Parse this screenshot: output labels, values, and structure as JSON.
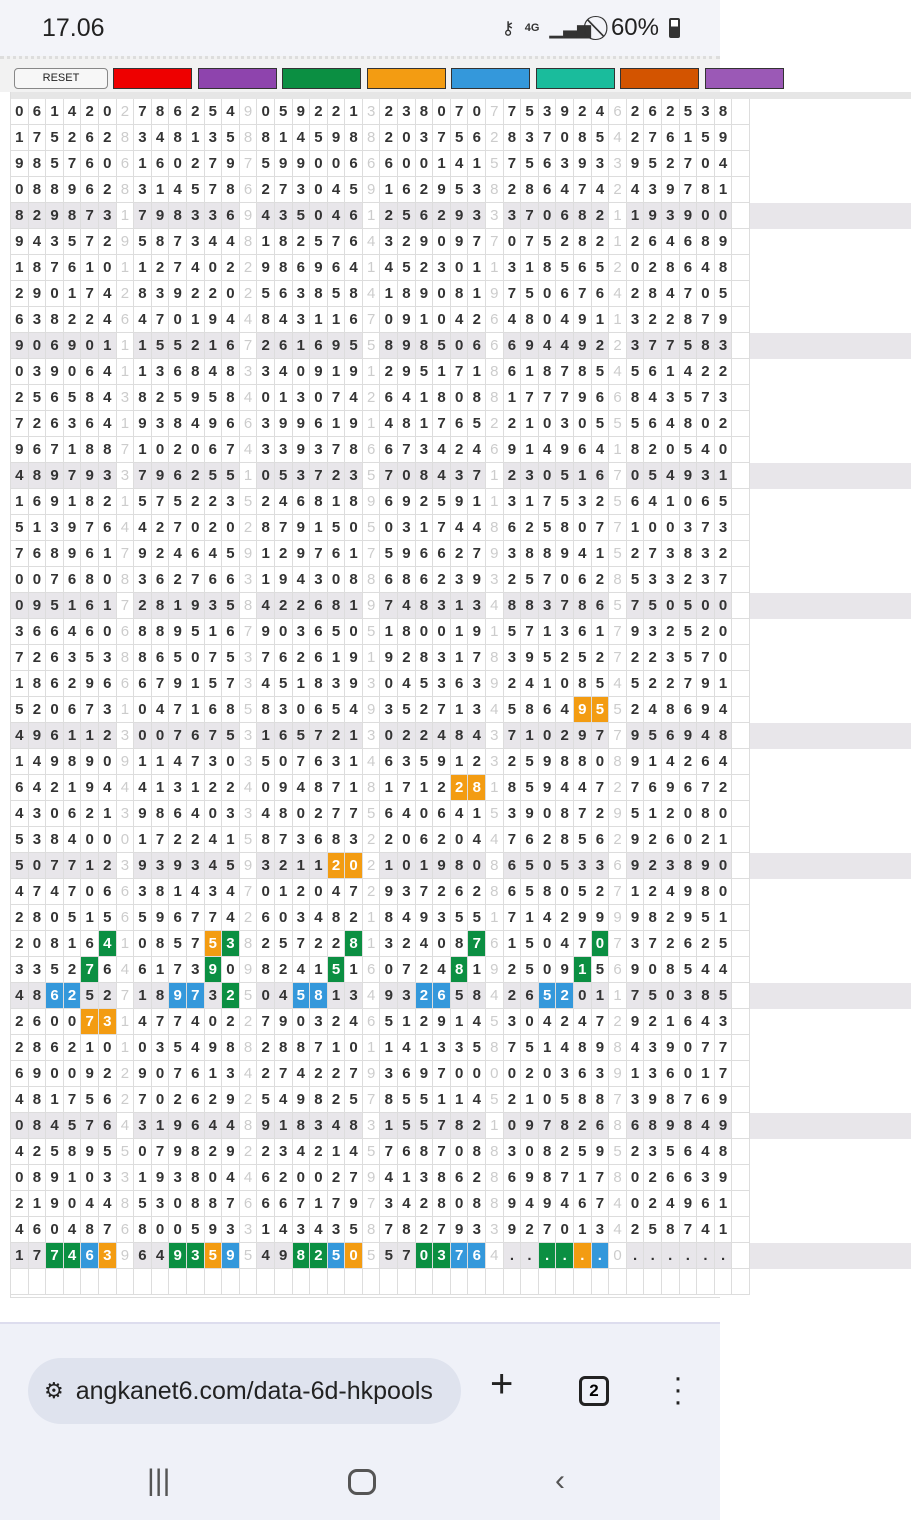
{
  "status": {
    "time": "17.06",
    "network": "4G",
    "battery": "60%",
    "icons": [
      "key-icon",
      "data-arrows-icon",
      "signal-icon",
      "do-not-disturb-icon",
      "battery-icon"
    ]
  },
  "toolbar": {
    "reset_label": "RESET",
    "swatches": [
      "#ee0000",
      "#8e44ad",
      "#0b8f42",
      "#f39c12",
      "#3498db",
      "#1abc9c",
      "#d35400",
      "#9b59b6"
    ]
  },
  "colors": {
    "orange": "#f39c12",
    "green": "#0b8f42",
    "blue": "#3498db"
  },
  "grid": {
    "rows": [
      {
        "b": [
          "061420",
          "786254",
          "059221",
          "238070",
          "753924",
          "262538"
        ],
        "s": [
          "2",
          "9",
          "3",
          "7",
          "6",
          ""
        ]
      },
      {
        "b": [
          "175262",
          "348135",
          "814598",
          "203756",
          "837085",
          "276159"
        ],
        "s": [
          "8",
          "8",
          "8",
          "2",
          "4",
          ""
        ]
      },
      {
        "b": [
          "985760",
          "160279",
          "599006",
          "600141",
          "756393",
          "952704"
        ],
        "s": [
          "6",
          "7",
          "6",
          "5",
          "3",
          ""
        ]
      },
      {
        "b": [
          "088962",
          "314578",
          "273045",
          "162953",
          "286474",
          "439781"
        ],
        "s": [
          "8",
          "6",
          "9",
          "8",
          "2",
          ""
        ]
      },
      {
        "b": [
          "829873",
          "798336",
          "435046",
          "256293",
          "370682",
          "193900"
        ],
        "s": [
          "1",
          "9",
          "1",
          "3",
          "1",
          ""
        ]
      },
      {
        "b": [
          "943572",
          "587344",
          "182576",
          "329097",
          "075282",
          "264689"
        ],
        "s": [
          "9",
          "8",
          "4",
          "7",
          "1",
          ""
        ]
      },
      {
        "b": [
          "187610",
          "127402",
          "986964",
          "452301",
          "318565",
          "028648"
        ],
        "s": [
          "1",
          "2",
          "1",
          "1",
          "2",
          ""
        ]
      },
      {
        "b": [
          "290174",
          "839220",
          "563858",
          "189081",
          "750676",
          "284705"
        ],
        "s": [
          "2",
          "2",
          "4",
          "9",
          "4",
          ""
        ]
      },
      {
        "b": [
          "638224",
          "470194",
          "843116",
          "091042",
          "480491",
          "322879"
        ],
        "s": [
          "6",
          "4",
          "7",
          "6",
          "1",
          ""
        ]
      },
      {
        "b": [
          "906901",
          "155216",
          "261695",
          "898506",
          "694492",
          "377583"
        ],
        "s": [
          "1",
          "7",
          "5",
          "6",
          "2",
          ""
        ]
      },
      {
        "b": [
          "039064",
          "136848",
          "340919",
          "295171",
          "618785",
          "561422"
        ],
        "s": [
          "1",
          "3",
          "1",
          "8",
          "4",
          ""
        ]
      },
      {
        "b": [
          "256584",
          "825958",
          "013074",
          "641808",
          "177796",
          "843573"
        ],
        "s": [
          "3",
          "4",
          "2",
          "8",
          "6",
          ""
        ]
      },
      {
        "b": [
          "726364",
          "938496",
          "399619",
          "481765",
          "210305",
          "564802"
        ],
        "s": [
          "1",
          "6",
          "1",
          "2",
          "5",
          ""
        ]
      },
      {
        "b": [
          "967188",
          "102067",
          "339378",
          "673424",
          "914964",
          "820540"
        ],
        "s": [
          "7",
          "4",
          "6",
          "6",
          "1",
          ""
        ]
      },
      {
        "b": [
          "489793",
          "796255",
          "053723",
          "708437",
          "230516",
          "054931"
        ],
        "s": [
          "3",
          "1",
          "5",
          "1",
          "7",
          ""
        ]
      },
      {
        "b": [
          "169182",
          "575223",
          "246818",
          "692591",
          "317532",
          "641065"
        ],
        "s": [
          "1",
          "5",
          "9",
          "1",
          "5",
          ""
        ]
      },
      {
        "b": [
          "513976",
          "427020",
          "879150",
          "031744",
          "625807",
          "100373"
        ],
        "s": [
          "4",
          "2",
          "5",
          "8",
          "7",
          ""
        ]
      },
      {
        "b": [
          "768961",
          "924645",
          "129761",
          "596627",
          "388941",
          "273832"
        ],
        "s": [
          "7",
          "9",
          "7",
          "9",
          "5",
          ""
        ]
      },
      {
        "b": [
          "007680",
          "362766",
          "194308",
          "686239",
          "257062",
          "533237"
        ],
        "s": [
          "8",
          "3",
          "8",
          "3",
          "8",
          ""
        ]
      },
      {
        "b": [
          "095161",
          "281935",
          "422681",
          "748313",
          "883786",
          "750500"
        ],
        "s": [
          "7",
          "8",
          "9",
          "4",
          "5",
          ""
        ]
      },
      {
        "b": [
          "366460",
          "889516",
          "903650",
          "180019",
          "571361",
          "932520"
        ],
        "s": [
          "6",
          "7",
          "5",
          "1",
          "7",
          ""
        ]
      },
      {
        "b": [
          "726353",
          "865075",
          "762619",
          "928317",
          "395252",
          "223570"
        ],
        "s": [
          "8",
          "3",
          "1",
          "8",
          "7",
          ""
        ]
      },
      {
        "b": [
          "186296",
          "679157",
          "451839",
          "045363",
          "241085",
          "522791"
        ],
        "s": [
          "6",
          "3",
          "3",
          "9",
          "4",
          ""
        ]
      },
      {
        "b": [
          "520673",
          "047168",
          "830654",
          "352713",
          "586495",
          "248694"
        ],
        "s": [
          "1",
          "5",
          "9",
          "4",
          "5",
          ""
        ],
        "m": [
          [
            4,
            4,
            "orange"
          ],
          [
            4,
            5,
            "orange"
          ]
        ]
      },
      {
        "b": [
          "496112",
          "007675",
          "165721",
          "022484",
          "710297",
          "956948"
        ],
        "s": [
          "3",
          "3",
          "3",
          "3",
          "7",
          ""
        ]
      },
      {
        "b": [
          "149890",
          "114730",
          "507631",
          "635912",
          "259880",
          "914264"
        ],
        "s": [
          "9",
          "3",
          "4",
          "3",
          "8",
          ""
        ]
      },
      {
        "b": [
          "642194",
          "413122",
          "094871",
          "171228",
          "859447",
          "769672"
        ],
        "s": [
          "4",
          "4",
          "8",
          "1",
          "2",
          ""
        ],
        "m": [
          [
            3,
            4,
            "orange"
          ],
          [
            3,
            5,
            "orange"
          ]
        ]
      },
      {
        "b": [
          "430621",
          "986403",
          "480277",
          "640641",
          "390872",
          "512080"
        ],
        "s": [
          "3",
          "3",
          "5",
          "5",
          "9",
          ""
        ]
      },
      {
        "b": [
          "538400",
          "172241",
          "873683",
          "206204",
          "762856",
          "926021"
        ],
        "s": [
          "0",
          "5",
          "2",
          "4",
          "2",
          ""
        ]
      },
      {
        "b": [
          "507712",
          "939345",
          "321120",
          "101980",
          "650533",
          "923890"
        ],
        "s": [
          "3",
          "9",
          "2",
          "8",
          "6",
          ""
        ],
        "m": [
          [
            2,
            4,
            "orange"
          ],
          [
            2,
            5,
            "orange"
          ]
        ]
      },
      {
        "b": [
          "474706",
          "381434",
          "012047",
          "937262",
          "658052",
          "124980"
        ],
        "s": [
          "6",
          "7",
          "2",
          "8",
          "7",
          ""
        ]
      },
      {
        "b": [
          "280515",
          "596774",
          "603482",
          "849355",
          "714299",
          "982951"
        ],
        "s": [
          "6",
          "2",
          "1",
          "1",
          "9",
          ""
        ]
      },
      {
        "b": [
          "208164",
          "085753",
          "257228",
          "324087",
          "150470",
          "372625"
        ],
        "s": [
          "1",
          "8",
          "1",
          "6",
          "7",
          ""
        ],
        "m": [
          [
            0,
            5,
            "green"
          ],
          [
            1,
            4,
            "orange"
          ],
          [
            1,
            5,
            "green"
          ],
          [
            2,
            5,
            "green"
          ],
          [
            3,
            5,
            "green"
          ],
          [
            4,
            5,
            "green"
          ]
        ]
      },
      {
        "b": [
          "335276",
          "617390",
          "824151",
          "072481",
          "250915",
          "908544"
        ],
        "s": [
          "4",
          "9",
          "6",
          "9",
          "6",
          ""
        ],
        "m": [
          [
            0,
            4,
            "green"
          ],
          [
            1,
            4,
            "green"
          ],
          [
            2,
            4,
            "green"
          ],
          [
            3,
            4,
            "green"
          ],
          [
            4,
            4,
            "green"
          ]
        ]
      },
      {
        "b": [
          "486252",
          "189732",
          "045813",
          "932658",
          "265201",
          "750385"
        ],
        "s": [
          "7",
          "5",
          "4",
          "4",
          "1",
          ""
        ],
        "m": [
          [
            0,
            2,
            "blue"
          ],
          [
            0,
            3,
            "blue"
          ],
          [
            1,
            2,
            "blue"
          ],
          [
            1,
            3,
            "blue"
          ],
          [
            1,
            5,
            "green"
          ],
          [
            2,
            2,
            "blue"
          ],
          [
            2,
            3,
            "blue"
          ],
          [
            3,
            2,
            "blue"
          ],
          [
            3,
            3,
            "blue"
          ],
          [
            4,
            2,
            "blue"
          ],
          [
            4,
            3,
            "blue"
          ]
        ]
      },
      {
        "b": [
          "260073",
          "477402",
          "790324",
          "512914",
          "304247",
          "921643"
        ],
        "s": [
          "1",
          "2",
          "6",
          "5",
          "2",
          ""
        ],
        "m": [
          [
            0,
            4,
            "orange"
          ],
          [
            0,
            5,
            "orange"
          ]
        ]
      },
      {
        "b": [
          "286210",
          "035498",
          "288710",
          "141335",
          "751489",
          "439077"
        ],
        "s": [
          "1",
          "8",
          "1",
          "8",
          "8",
          ""
        ]
      },
      {
        "b": [
          "690092",
          "907613",
          "274227",
          "369700",
          "020363",
          "136017"
        ],
        "s": [
          "2",
          "4",
          "9",
          "0",
          "9",
          ""
        ]
      },
      {
        "b": [
          "481756",
          "702629",
          "549825",
          "855114",
          "210588",
          "398769"
        ],
        "s": [
          "2",
          "2",
          "7",
          "5",
          "7",
          ""
        ]
      },
      {
        "b": [
          "084576",
          "319644",
          "918348",
          "155782",
          "097826",
          "689849"
        ],
        "s": [
          "4",
          "8",
          "3",
          "1",
          "8",
          ""
        ]
      },
      {
        "b": [
          "425895",
          "079829",
          "234214",
          "768708",
          "308259",
          "235648"
        ],
        "s": [
          "5",
          "2",
          "5",
          "8",
          "5",
          ""
        ]
      },
      {
        "b": [
          "089103",
          "193804",
          "620027",
          "413862",
          "698717",
          "026639"
        ],
        "s": [
          "3",
          "4",
          "9",
          "8",
          "8",
          ""
        ]
      },
      {
        "b": [
          "219044",
          "530887",
          "667179",
          "342808",
          "949467",
          "024961"
        ],
        "s": [
          "8",
          "6",
          "7",
          "8",
          "4",
          ""
        ]
      },
      {
        "b": [
          "460487",
          "800593",
          "143435",
          "782793",
          "927013",
          "258741"
        ],
        "s": [
          "6",
          "3",
          "8",
          "3",
          "4",
          ""
        ]
      },
      {
        "b": [
          "177463",
          "649359",
          "498250",
          "570376",
          "......",
          "......"
        ],
        "s": [
          "9",
          "5",
          "5",
          "4",
          "0",
          ""
        ],
        "m": [
          [
            0,
            2,
            "green"
          ],
          [
            0,
            3,
            "green"
          ],
          [
            0,
            4,
            "blue"
          ],
          [
            0,
            5,
            "orange"
          ],
          [
            1,
            2,
            "green"
          ],
          [
            1,
            3,
            "green"
          ],
          [
            1,
            4,
            "orange"
          ],
          [
            1,
            5,
            "blue"
          ],
          [
            2,
            2,
            "green"
          ],
          [
            2,
            3,
            "green"
          ],
          [
            2,
            4,
            "blue"
          ],
          [
            2,
            5,
            "orange"
          ],
          [
            3,
            2,
            "green"
          ],
          [
            3,
            3,
            "green"
          ],
          [
            3,
            4,
            "blue"
          ],
          [
            3,
            5,
            "blue"
          ],
          [
            4,
            2,
            "green"
          ],
          [
            4,
            3,
            "green"
          ],
          [
            4,
            4,
            "orange"
          ],
          [
            4,
            5,
            "blue"
          ]
        ]
      }
    ]
  },
  "browser": {
    "url": "angkanet6.com/data-6d-hkpools",
    "tab_count": "2"
  }
}
